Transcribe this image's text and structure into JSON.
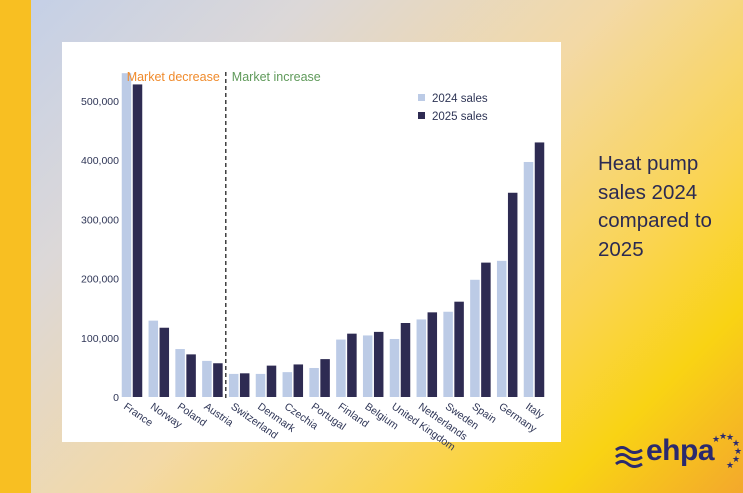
{
  "side_title": "Heat pump sales 2024 compared to 2025",
  "logo": {
    "text": "ehpa",
    "icon": "wave-lines-icon",
    "stars": "eu-stars-icon"
  },
  "colors": {
    "series_2024": "#bccbe6",
    "series_2025": "#2e2b52",
    "decrease_label": "#f08b2c",
    "increase_label": "#5f9a5a",
    "axis_text": "#2e3556"
  },
  "chart_data": {
    "type": "bar",
    "title": "",
    "xlabel": "",
    "ylabel": "",
    "ylim": [
      0,
      550000
    ],
    "yticks": [
      0,
      100000,
      200000,
      300000,
      400000,
      500000
    ],
    "ytick_labels": [
      "0",
      "100,000",
      "200,000",
      "300,000",
      "400,000",
      "500,000"
    ],
    "grid": false,
    "legend_position": "top-right",
    "categories": [
      "France",
      "Norway",
      "Poland",
      "Austria",
      "Switzerland",
      "Denmark",
      "Czechia",
      "Portugal",
      "Finland",
      "Belgium",
      "United Kingdom",
      "Netherlands",
      "Sweden",
      "Spain",
      "Germany",
      "Italy"
    ],
    "series": [
      {
        "name": "2024 sales",
        "values": [
          547000,
          129000,
          81000,
          61000,
          39000,
          39000,
          42000,
          49000,
          97000,
          104000,
          98000,
          131000,
          144000,
          198000,
          230000,
          397000
        ]
      },
      {
        "name": "2025 sales",
        "values": [
          528000,
          117000,
          72000,
          57000,
          40000,
          53000,
          55000,
          64000,
          107000,
          110000,
          125000,
          143000,
          161000,
          227000,
          345000,
          430000
        ]
      }
    ],
    "annotations": {
      "divider_after_category": "Austria",
      "left_label": "Market decrease",
      "right_label": "Market increase"
    }
  }
}
